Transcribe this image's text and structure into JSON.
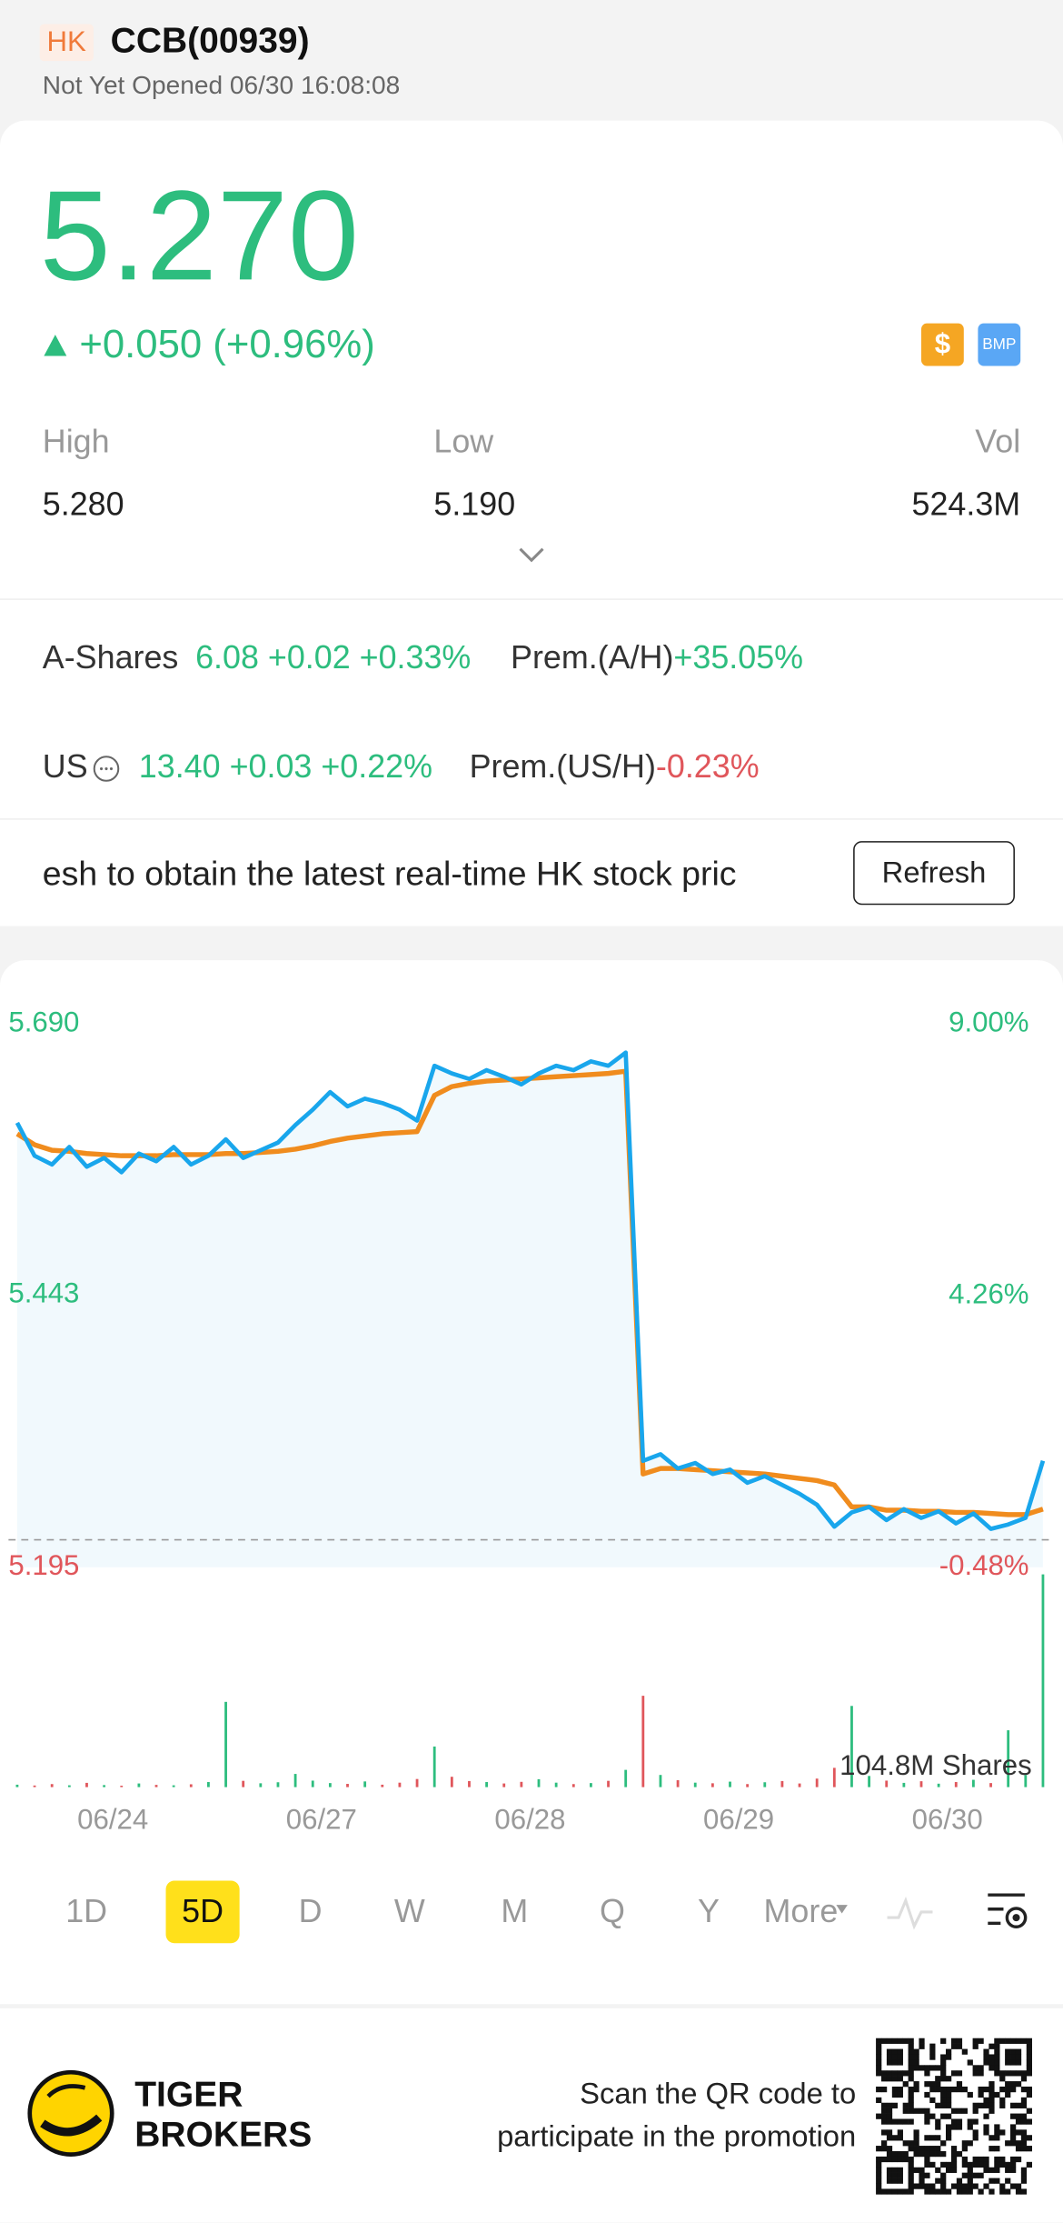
{
  "header": {
    "market": "HK",
    "name": "CCB(00939)",
    "status": "Not Yet Opened 06/30 16:08:08"
  },
  "quote": {
    "price": "5.270",
    "change": "+0.050 (+0.96%)",
    "badges": [
      "$",
      "BMP"
    ]
  },
  "stats": [
    {
      "label": "High",
      "value": "5.280"
    },
    {
      "label": "Low",
      "value": "5.190"
    },
    {
      "label": "Vol",
      "value": "524.3M"
    }
  ],
  "related": [
    {
      "label": "A-Shares",
      "quote": "6.08 +0.02 +0.33%",
      "prem_label": "Prem.(A/H)",
      "prem": "+35.05%"
    },
    {
      "label": "US",
      "quote": "13.40 +0.03 +0.22%",
      "prem_label": "Prem.(US/H)",
      "prem": "-0.23%"
    }
  ],
  "notice": {
    "text": "esh to obtain the latest real-time HK stock pric",
    "button": "Refresh"
  },
  "chart_data": {
    "type": "line",
    "up_color": "#2dbd7e",
    "down_color": "#e0565b",
    "xlim": [
      -0.5,
      59.5
    ],
    "xticks": [
      {
        "value": 5.5,
        "label": "06/24"
      },
      {
        "value": 17.5,
        "label": "06/27"
      },
      {
        "value": 29.5,
        "label": "06/28"
      },
      {
        "value": 41.5,
        "label": "06/29"
      },
      {
        "value": 53.5,
        "label": "06/30"
      }
    ],
    "ylim": [
      5.195,
      5.69
    ],
    "yticks": [
      {
        "value": 5.69,
        "label": "5.690"
      },
      {
        "value": 5.443,
        "label": "5.443"
      },
      {
        "value": 5.195,
        "label": "5.195"
      }
    ],
    "y2lim": [
      -0.48,
      9.0
    ],
    "y2ticks": [
      {
        "value": 9.0,
        "label": "9.00%"
      },
      {
        "value": 4.26,
        "label": "4.26%"
      },
      {
        "value": -0.48,
        "label": "-0.48%"
      }
    ],
    "series": [
      {
        "color": "#19a6ec",
        "values": [
          5.6,
          5.57,
          5.562,
          5.578,
          5.56,
          5.568,
          5.555,
          5.572,
          5.565,
          5.578,
          5.562,
          5.57,
          5.585,
          5.568,
          5.575,
          5.582,
          5.598,
          5.612,
          5.628,
          5.615,
          5.622,
          5.618,
          5.612,
          5.602,
          5.652,
          5.645,
          5.64,
          5.648,
          5.642,
          5.635,
          5.645,
          5.652,
          5.648,
          5.656,
          5.652,
          5.664,
          5.292,
          5.298,
          5.285,
          5.29,
          5.28,
          5.284,
          5.272,
          5.278,
          5.27,
          5.262,
          5.252,
          5.232,
          5.245,
          5.25,
          5.238,
          5.248,
          5.24,
          5.246,
          5.235,
          5.244,
          5.23,
          5.234,
          5.24,
          5.292
        ]
      },
      {
        "color": "#f08c1e",
        "values": [
          5.59,
          5.58,
          5.575,
          5.574,
          5.572,
          5.571,
          5.57,
          5.57,
          5.57,
          5.571,
          5.571,
          5.571,
          5.572,
          5.572,
          5.573,
          5.574,
          5.576,
          5.579,
          5.583,
          5.586,
          5.588,
          5.59,
          5.591,
          5.592,
          5.625,
          5.633,
          5.636,
          5.638,
          5.639,
          5.64,
          5.641,
          5.642,
          5.643,
          5.644,
          5.645,
          5.647,
          5.28,
          5.285,
          5.285,
          5.284,
          5.283,
          5.282,
          5.281,
          5.28,
          5.278,
          5.276,
          5.274,
          5.27,
          5.25,
          5.25,
          5.247,
          5.247,
          5.246,
          5.246,
          5.245,
          5.245,
          5.244,
          5.243,
          5.243,
          5.248
        ]
      }
    ],
    "volume": {
      "values": [
        1.2,
        0.8,
        1.5,
        0.9,
        2.1,
        1.0,
        0.7,
        1.8,
        1.1,
        0.9,
        1.4,
        2.5,
        42,
        3.1,
        1.9,
        2.4,
        6.5,
        3.2,
        2.0,
        1.6,
        2.8,
        1.2,
        2.2,
        4.0,
        20,
        5.1,
        3.0,
        2.5,
        1.8,
        2.6,
        3.9,
        2.2,
        1.5,
        2.0,
        3.1,
        8.5,
        45,
        6.0,
        3.4,
        2.2,
        1.9,
        2.7,
        1.5,
        2.4,
        3.0,
        1.8,
        4.2,
        9.5,
        40,
        5.5,
        3.2,
        2.1,
        2.9,
        1.7,
        2.5,
        3.6,
        2.0,
        28,
        6.0,
        104.8
      ]
    },
    "volume_scale": {
      "value": 104.8,
      "label": "104.8M Shares"
    }
  },
  "periods": [
    "1D",
    "5D",
    "D",
    "W",
    "M",
    "Q",
    "Y",
    "More"
  ],
  "active_period": 1,
  "footer": {
    "brand": [
      "TIGER",
      "BROKERS"
    ],
    "promo": [
      "Scan the QR code to",
      "participate in the promotion"
    ]
  }
}
